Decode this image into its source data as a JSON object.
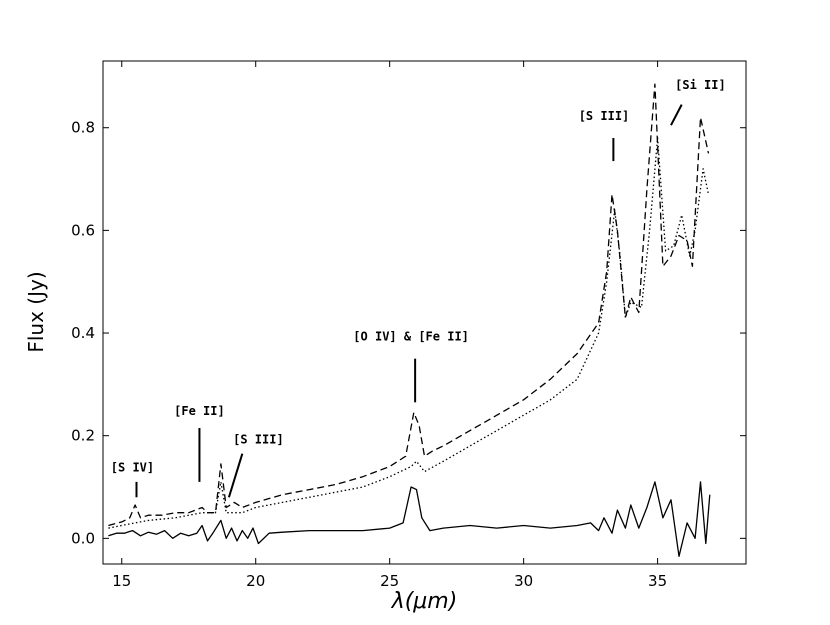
{
  "chart_data": {
    "type": "line",
    "title": "",
    "xlabel": "λ(μm)",
    "ylabel": "Flux (Jy)",
    "xlim": [
      14.3,
      38.3
    ],
    "ylim": [
      -0.05,
      0.93
    ],
    "xticks": [
      15,
      20,
      25,
      30,
      35
    ],
    "yticks": [
      0.0,
      0.2,
      0.4,
      0.6,
      0.8
    ],
    "ytick_labels": [
      "0.0",
      "0.2",
      "0.4",
      "0.6",
      "0.8"
    ],
    "grid": false,
    "legend": "none",
    "series": [
      {
        "style": "dashed",
        "x": [
          14.5,
          15.0,
          15.3,
          15.5,
          15.7,
          16.0,
          16.5,
          17.0,
          17.5,
          18.0,
          18.2,
          18.5,
          18.7,
          18.9,
          19.2,
          19.5,
          20.0,
          21.0,
          22.0,
          23.0,
          24.0,
          25.0,
          25.6,
          25.9,
          26.1,
          26.3,
          26.6,
          27.0,
          28.0,
          29.0,
          30.0,
          31.0,
          32.0,
          32.8,
          33.1,
          33.3,
          33.5,
          33.8,
          34.0,
          34.3,
          34.6,
          34.9,
          35.2,
          35.5,
          35.8,
          36.1,
          36.3,
          36.6,
          36.9
        ],
        "y": [
          0.025,
          0.032,
          0.04,
          0.065,
          0.04,
          0.045,
          0.045,
          0.05,
          0.05,
          0.06,
          0.05,
          0.05,
          0.145,
          0.06,
          0.07,
          0.06,
          0.07,
          0.085,
          0.095,
          0.105,
          0.12,
          0.14,
          0.16,
          0.245,
          0.22,
          0.16,
          0.17,
          0.18,
          0.21,
          0.24,
          0.27,
          0.31,
          0.36,
          0.42,
          0.52,
          0.67,
          0.6,
          0.43,
          0.47,
          0.44,
          0.68,
          0.885,
          0.53,
          0.55,
          0.59,
          0.58,
          0.53,
          0.82,
          0.75
        ]
      },
      {
        "style": "dotted",
        "x": [
          14.5,
          15.0,
          15.5,
          16.0,
          17.0,
          18.0,
          18.5,
          18.7,
          18.9,
          19.5,
          20.0,
          21.0,
          22.0,
          23.0,
          24.0,
          25.0,
          25.8,
          26.0,
          26.3,
          27.0,
          28.0,
          29.0,
          30.0,
          31.0,
          32.0,
          32.8,
          33.1,
          33.4,
          33.6,
          33.8,
          34.0,
          34.4,
          34.7,
          35.0,
          35.3,
          35.6,
          35.9,
          36.2,
          36.4,
          36.7,
          36.9
        ],
        "y": [
          0.02,
          0.025,
          0.03,
          0.035,
          0.04,
          0.05,
          0.05,
          0.11,
          0.05,
          0.05,
          0.06,
          0.07,
          0.08,
          0.09,
          0.1,
          0.12,
          0.14,
          0.15,
          0.13,
          0.15,
          0.18,
          0.21,
          0.24,
          0.27,
          0.31,
          0.4,
          0.5,
          0.64,
          0.55,
          0.43,
          0.46,
          0.45,
          0.6,
          0.78,
          0.56,
          0.57,
          0.63,
          0.55,
          0.6,
          0.72,
          0.67
        ]
      },
      {
        "style": "solid",
        "x": [
          14.5,
          14.8,
          15.1,
          15.4,
          15.7,
          16.0,
          16.3,
          16.6,
          16.9,
          17.2,
          17.5,
          17.8,
          18.0,
          18.2,
          18.4,
          18.7,
          18.9,
          19.1,
          19.3,
          19.5,
          19.7,
          19.9,
          20.1,
          20.5,
          21.0,
          22.0,
          23.0,
          24.0,
          25.0,
          25.5,
          25.8,
          26.0,
          26.2,
          26.5,
          27.0,
          28.0,
          29.0,
          30.0,
          31.0,
          32.0,
          32.5,
          32.8,
          33.0,
          33.3,
          33.5,
          33.8,
          34.0,
          34.3,
          34.6,
          34.9,
          35.2,
          35.5,
          35.8,
          36.1,
          36.4,
          36.6,
          36.8,
          36.95
        ],
        "y": [
          0.005,
          0.01,
          0.01,
          0.015,
          0.005,
          0.012,
          0.008,
          0.015,
          0.0,
          0.01,
          0.005,
          0.01,
          0.025,
          -0.005,
          0.01,
          0.035,
          0.0,
          0.02,
          -0.005,
          0.015,
          0.0,
          0.02,
          -0.01,
          0.01,
          0.012,
          0.015,
          0.015,
          0.015,
          0.02,
          0.03,
          0.1,
          0.095,
          0.04,
          0.015,
          0.02,
          0.025,
          0.02,
          0.025,
          0.02,
          0.025,
          0.03,
          0.015,
          0.04,
          0.01,
          0.055,
          0.02,
          0.065,
          0.02,
          0.06,
          0.11,
          0.04,
          0.075,
          -0.035,
          0.03,
          0.0,
          0.11,
          -0.01,
          0.085
        ]
      }
    ],
    "annotations": [
      {
        "text": "[S IV]",
        "label_x": 15.4,
        "label_y": 0.13,
        "line_from": [
          15.55,
          0.11
        ],
        "line_to": [
          15.55,
          0.08
        ]
      },
      {
        "text": "[Fe II]",
        "label_x": 17.9,
        "label_y": 0.24,
        "line_from": [
          17.9,
          0.215
        ],
        "line_to": [
          17.9,
          0.11
        ]
      },
      {
        "text": "[S III]",
        "label_x": 20.1,
        "label_y": 0.185,
        "line_from": [
          19.5,
          0.165
        ],
        "line_to": [
          19.0,
          0.08
        ]
      },
      {
        "text": "[O IV] & [Fe II]",
        "label_x": 25.8,
        "label_y": 0.385,
        "line_from": [
          25.95,
          0.35
        ],
        "line_to": [
          25.95,
          0.265
        ]
      },
      {
        "text": "[S III]",
        "label_x": 33.0,
        "label_y": 0.815,
        "line_from": [
          33.35,
          0.78
        ],
        "line_to": [
          33.35,
          0.735
        ]
      },
      {
        "text": "[Si II]",
        "label_x": 36.6,
        "label_y": 0.875,
        "line_from": [
          35.9,
          0.845
        ],
        "line_to": [
          35.5,
          0.805
        ]
      }
    ]
  }
}
